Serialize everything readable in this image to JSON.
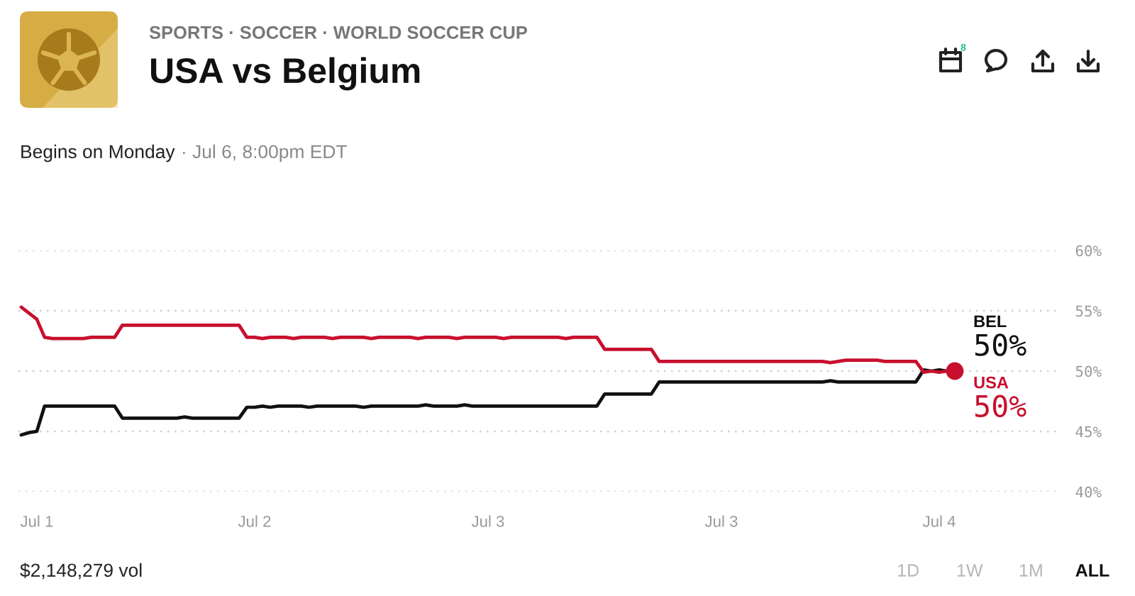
{
  "chart_data": {
    "type": "line",
    "title": "USA vs Belgium",
    "subtitle": "Begins on Monday",
    "annotations": [
      "SPORTS · SOCCER · WORLD SOCCER CUP",
      "· Jul 6, 8:00pm EDT",
      "8",
      "$2,148,279 vol",
      "1D",
      "1W",
      "1M",
      "ALL"
    ],
    "categories": [
      null,
      null,
      "Jul 1",
      null,
      null,
      null,
      null,
      null,
      null,
      null,
      null,
      null,
      null,
      null,
      null,
      null,
      null,
      null,
      null,
      null,
      null,
      null,
      null,
      null,
      null,
      null,
      null,
      null,
      null,
      null,
      "Jul 2",
      null,
      null,
      null,
      null,
      null,
      null,
      null,
      null,
      null,
      null,
      null,
      null,
      null,
      null,
      null,
      null,
      null,
      null,
      null,
      null,
      null,
      null,
      null,
      null,
      null,
      null,
      null,
      null,
      null,
      "Jul 3",
      null,
      null,
      null,
      null,
      null,
      null,
      null,
      null,
      null,
      null,
      null,
      null,
      null,
      null,
      null,
      null,
      null,
      null,
      null,
      null,
      null,
      null,
      null,
      null,
      null,
      null,
      null,
      null,
      null,
      "Jul 3",
      null,
      null,
      null,
      null,
      null,
      null,
      null,
      null,
      null,
      null,
      null,
      null,
      null,
      null,
      null,
      null,
      null,
      null,
      null,
      null,
      null,
      null,
      null,
      null,
      null,
      null,
      null,
      "Jul 4",
      null,
      null
    ],
    "series": [
      {
        "name": "BEL",
        "color": "#111111",
        "values": [
          44.7,
          44.9,
          45.0,
          47.1,
          47.1,
          47.1,
          47.1,
          47.1,
          47.1,
          47.1,
          47.1,
          47.1,
          47.1,
          46.1,
          46.1,
          46.1,
          46.1,
          46.1,
          46.1,
          46.1,
          46.1,
          46.2,
          46.1,
          46.1,
          46.1,
          46.1,
          46.1,
          46.1,
          46.1,
          47.0,
          47.0,
          47.1,
          47.0,
          47.1,
          47.1,
          47.1,
          47.1,
          47.0,
          47.1,
          47.1,
          47.1,
          47.1,
          47.1,
          47.1,
          47.0,
          47.1,
          47.1,
          47.1,
          47.1,
          47.1,
          47.1,
          47.1,
          47.2,
          47.1,
          47.1,
          47.1,
          47.1,
          47.2,
          47.1,
          47.1,
          47.1,
          47.1,
          47.1,
          47.1,
          47.1,
          47.1,
          47.1,
          47.1,
          47.1,
          47.1,
          47.1,
          47.1,
          47.1,
          47.1,
          47.1,
          48.1,
          48.1,
          48.1,
          48.1,
          48.1,
          48.1,
          48.1,
          49.1,
          49.1,
          49.1,
          49.1,
          49.1,
          49.1,
          49.1,
          49.1,
          49.1,
          49.1,
          49.1,
          49.1,
          49.1,
          49.1,
          49.1,
          49.1,
          49.1,
          49.1,
          49.1,
          49.1,
          49.1,
          49.1,
          49.2,
          49.1,
          49.1,
          49.1,
          49.1,
          49.1,
          49.1,
          49.1,
          49.1,
          49.1,
          49.1,
          49.1,
          50.1,
          50.0,
          50.1,
          50.0,
          50.0
        ],
        "value_labels": [
          null,
          null,
          null,
          null,
          null,
          null,
          null,
          null,
          null,
          null,
          null,
          null,
          null,
          null,
          null,
          null,
          null,
          null,
          null,
          null,
          null,
          null,
          null,
          null,
          null,
          null,
          null,
          null,
          null,
          null,
          null,
          null,
          null,
          null,
          null,
          null,
          null,
          null,
          null,
          null,
          null,
          null,
          null,
          null,
          null,
          null,
          null,
          null,
          null,
          null,
          null,
          null,
          null,
          null,
          null,
          null,
          null,
          null,
          null,
          null,
          null,
          null,
          null,
          null,
          null,
          null,
          null,
          null,
          null,
          null,
          null,
          null,
          null,
          null,
          null,
          null,
          null,
          null,
          null,
          null,
          null,
          null,
          null,
          null,
          null,
          null,
          null,
          null,
          null,
          null,
          null,
          null,
          null,
          null,
          null,
          null,
          null,
          null,
          null,
          null,
          null,
          null,
          null,
          null,
          null,
          null,
          null,
          null,
          null,
          null,
          null,
          null,
          null,
          null,
          null,
          null,
          null,
          null,
          null,
          null,
          "50%"
        ]
      },
      {
        "name": "USA",
        "color": "#c8102e",
        "values": [
          55.3,
          54.8,
          54.3,
          52.8,
          52.7,
          52.7,
          52.7,
          52.7,
          52.7,
          52.8,
          52.8,
          52.8,
          52.8,
          53.8,
          53.8,
          53.8,
          53.8,
          53.8,
          53.8,
          53.8,
          53.8,
          53.8,
          53.8,
          53.8,
          53.8,
          53.8,
          53.8,
          53.8,
          53.8,
          52.8,
          52.8,
          52.7,
          52.8,
          52.8,
          52.8,
          52.7,
          52.8,
          52.8,
          52.8,
          52.8,
          52.7,
          52.8,
          52.8,
          52.8,
          52.8,
          52.7,
          52.8,
          52.8,
          52.8,
          52.8,
          52.8,
          52.7,
          52.8,
          52.8,
          52.8,
          52.8,
          52.7,
          52.8,
          52.8,
          52.8,
          52.8,
          52.8,
          52.7,
          52.8,
          52.8,
          52.8,
          52.8,
          52.8,
          52.8,
          52.8,
          52.7,
          52.8,
          52.8,
          52.8,
          52.8,
          51.8,
          51.8,
          51.8,
          51.8,
          51.8,
          51.8,
          51.8,
          50.8,
          50.8,
          50.8,
          50.8,
          50.8,
          50.8,
          50.8,
          50.8,
          50.8,
          50.8,
          50.8,
          50.8,
          50.8,
          50.8,
          50.8,
          50.8,
          50.8,
          50.8,
          50.8,
          50.8,
          50.8,
          50.8,
          50.7,
          50.8,
          50.9,
          50.9,
          50.9,
          50.9,
          50.9,
          50.8,
          50.8,
          50.8,
          50.8,
          50.8,
          49.9,
          50.0,
          49.9,
          50.0,
          50.0
        ],
        "value_labels": [
          null,
          null,
          null,
          null,
          null,
          null,
          null,
          null,
          null,
          null,
          null,
          null,
          null,
          null,
          null,
          null,
          null,
          null,
          null,
          null,
          null,
          null,
          null,
          null,
          null,
          null,
          null,
          null,
          null,
          null,
          null,
          null,
          null,
          null,
          null,
          null,
          null,
          null,
          null,
          null,
          null,
          null,
          null,
          null,
          null,
          null,
          null,
          null,
          null,
          null,
          null,
          null,
          null,
          null,
          null,
          null,
          null,
          null,
          null,
          null,
          null,
          null,
          null,
          null,
          null,
          null,
          null,
          null,
          null,
          null,
          null,
          null,
          null,
          null,
          null,
          null,
          null,
          null,
          null,
          null,
          null,
          null,
          null,
          null,
          null,
          null,
          null,
          null,
          null,
          null,
          null,
          null,
          null,
          null,
          null,
          null,
          null,
          null,
          null,
          null,
          null,
          null,
          null,
          null,
          null,
          null,
          null,
          null,
          null,
          null,
          null,
          null,
          null,
          null,
          null,
          null,
          null,
          null,
          null,
          null,
          "50%"
        ]
      },
      {
        "type": "scatter",
        "color": "#c8102e",
        "values": [
          null,
          null,
          null,
          null,
          null,
          null,
          null,
          null,
          null,
          null,
          null,
          null,
          null,
          null,
          null,
          null,
          null,
          null,
          null,
          null,
          null,
          null,
          null,
          null,
          null,
          null,
          null,
          null,
          null,
          null,
          null,
          null,
          null,
          null,
          null,
          null,
          null,
          null,
          null,
          null,
          null,
          null,
          null,
          null,
          null,
          null,
          null,
          null,
          null,
          null,
          null,
          null,
          null,
          null,
          null,
          null,
          null,
          null,
          null,
          null,
          null,
          null,
          null,
          null,
          null,
          null,
          null,
          null,
          null,
          null,
          null,
          null,
          null,
          null,
          null,
          null,
          null,
          null,
          null,
          null,
          null,
          null,
          null,
          null,
          null,
          null,
          null,
          null,
          null,
          null,
          null,
          null,
          null,
          null,
          null,
          null,
          null,
          null,
          null,
          null,
          null,
          null,
          null,
          null,
          null,
          null,
          null,
          null,
          null,
          null,
          null,
          null,
          null,
          null,
          null,
          null,
          null,
          null,
          null,
          null,
          50
        ]
      }
    ],
    "ylim": [
      40,
      60
    ],
    "yticks": [
      {
        "value": 40,
        "label": "40%"
      },
      {
        "value": 45,
        "label": "45%"
      },
      {
        "value": 50,
        "label": "50%"
      },
      {
        "value": 55,
        "label": "55%"
      },
      {
        "value": 60,
        "label": "60%"
      }
    ],
    "grid": "y"
  }
}
